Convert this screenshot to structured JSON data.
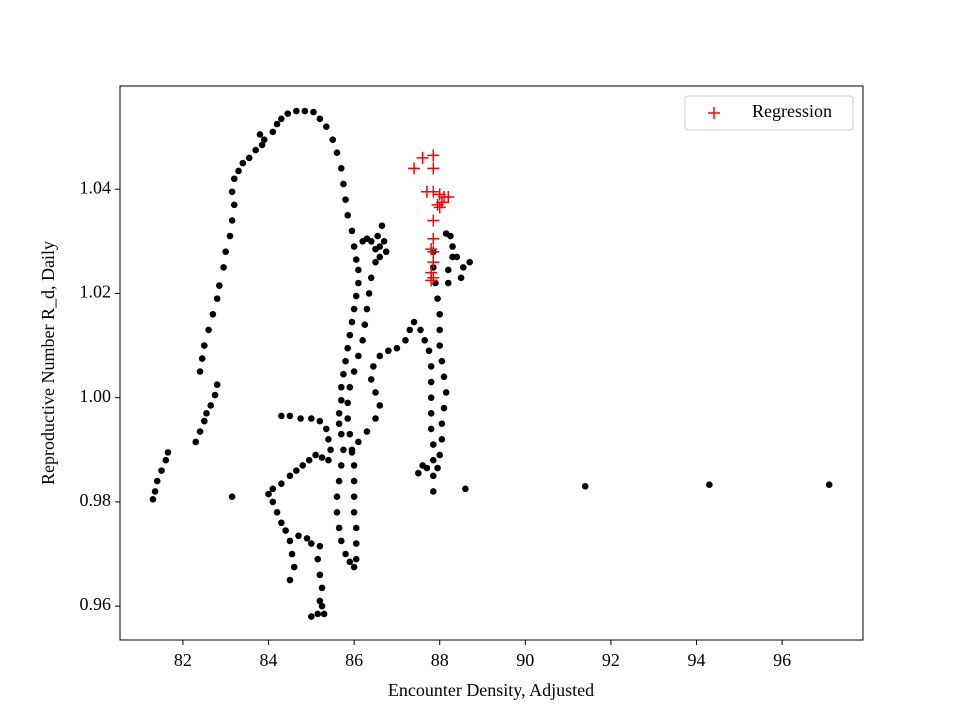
{
  "chart_data": {
    "type": "scatter",
    "xlabel": "Encounter Density, Adjusted",
    "ylabel": "Reproductive Number R_d, Daily",
    "xlim": [
      80.53,
      97.89
    ],
    "ylim": [
      0.9535,
      1.0598
    ],
    "xticks": [
      82,
      84,
      86,
      88,
      90,
      92,
      94,
      96
    ],
    "yticks": [
      0.96,
      0.98,
      {
        "value": 1,
        "label": "1.00"
      },
      1.02,
      1.04
    ],
    "grid": false,
    "legend": "upper right",
    "series": [
      {
        "color": "#000000",
        "marker": "o",
        "x": [
          81.3,
          81.35,
          81.4,
          81.5,
          81.6,
          81.65,
          82.3,
          82.4,
          82.5,
          82.55,
          82.65,
          82.75,
          82.8,
          82.4,
          82.45,
          82.5,
          82.6,
          82.7,
          82.8,
          82.85,
          82.95,
          83.0,
          83.1,
          83.15,
          83.2,
          83.15,
          83.2,
          83.3,
          83.4,
          83.55,
          83.7,
          83.85,
          83.8,
          83.9,
          84.1,
          84.2,
          84.3,
          84.45,
          84.65,
          84.85,
          85.05,
          85.2,
          85.35,
          85.5,
          85.6,
          85.7,
          85.75,
          85.8,
          85.85,
          85.95,
          86.0,
          86.05,
          86.1,
          86.1,
          86.05,
          86.0,
          85.95,
          85.9,
          85.85,
          85.8,
          85.75,
          85.7,
          85.7,
          85.65,
          85.65,
          85.7,
          85.75,
          85.7,
          85.65,
          85.6,
          85.6,
          85.65,
          85.7,
          85.8,
          85.9,
          86.0,
          86.05,
          86.05,
          86.05,
          86.0,
          86.0,
          86.0,
          86.0,
          85.95,
          85.9,
          85.85,
          85.85,
          85.9,
          86.0,
          86.1,
          86.2,
          86.25,
          86.3,
          86.35,
          86.4,
          86.5,
          86.6,
          86.55,
          86.65,
          86.7,
          86.75,
          86.6,
          86.5,
          86.4,
          86.3,
          86.2,
          84.0,
          84.1,
          84.3,
          84.5,
          84.65,
          84.8,
          84.95,
          85.1,
          85.25,
          85.4,
          84.3,
          84.5,
          84.75,
          85.0,
          85.2,
          85.35,
          85.4,
          85.45,
          83.15,
          84.1,
          84.2,
          84.3,
          84.4,
          84.5,
          84.55,
          84.6,
          84.5,
          84.7,
          84.9,
          85.0,
          85.2,
          85.15,
          85.2,
          85.25,
          85.2,
          85.15,
          85.0,
          85.3,
          85.25,
          85.95,
          86.1,
          86.3,
          86.5,
          86.6,
          86.5,
          86.4,
          86.45,
          86.6,
          86.8,
          87.0,
          87.2,
          87.3,
          87.4,
          87.55,
          87.65,
          87.75,
          87.8,
          87.8,
          87.8,
          87.8,
          87.8,
          87.85,
          87.85,
          87.85,
          87.85,
          87.5,
          87.6,
          87.7,
          87.95,
          88.0,
          88.05,
          88.05,
          88.1,
          88.15,
          88.1,
          88.05,
          88.0,
          88.0,
          88.0,
          87.95,
          87.9,
          87.85,
          87.85,
          88.25,
          88.3,
          88.3,
          88.2,
          88.2,
          88.5,
          88.55,
          88.7,
          88.4,
          88.15,
          88.6,
          91.4,
          94.3,
          97.1
        ],
        "values": [
          0.9805,
          0.982,
          0.984,
          0.986,
          0.988,
          0.9895,
          0.9915,
          0.9935,
          0.9955,
          0.997,
          0.9985,
          1.0005,
          1.0025,
          1.005,
          1.0075,
          1.01,
          1.013,
          1.016,
          1.019,
          1.0215,
          1.025,
          1.028,
          1.031,
          1.034,
          1.037,
          1.0395,
          1.042,
          1.0435,
          1.045,
          1.046,
          1.0475,
          1.0485,
          1.0505,
          1.0495,
          1.051,
          1.0525,
          1.0535,
          1.0545,
          1.055,
          1.055,
          1.0548,
          1.0535,
          1.052,
          1.0495,
          1.047,
          1.044,
          1.041,
          1.038,
          1.035,
          1.032,
          1.029,
          1.0265,
          1.0245,
          1.022,
          1.0195,
          1.017,
          1.0145,
          1.012,
          1.0095,
          1.007,
          1.0045,
          1.002,
          0.9995,
          0.997,
          0.995,
          0.993,
          0.99,
          0.987,
          0.984,
          0.981,
          0.978,
          0.975,
          0.9725,
          0.97,
          0.9685,
          0.9675,
          0.969,
          0.972,
          0.975,
          0.978,
          0.981,
          0.984,
          0.987,
          0.99,
          0.993,
          0.996,
          0.999,
          1.002,
          1.005,
          1.008,
          1.011,
          1.014,
          1.017,
          1.02,
          1.023,
          1.026,
          1.029,
          1.031,
          1.033,
          1.03,
          1.028,
          1.027,
          1.0285,
          1.03,
          1.0305,
          1.03,
          0.9815,
          0.9825,
          0.9835,
          0.985,
          0.986,
          0.987,
          0.988,
          0.989,
          0.9885,
          0.988,
          0.9965,
          0.9965,
          0.996,
          0.996,
          0.9955,
          0.994,
          0.992,
          0.99,
          0.981,
          0.98,
          0.978,
          0.976,
          0.9745,
          0.9725,
          0.97,
          0.9675,
          0.965,
          0.9735,
          0.973,
          0.972,
          0.9715,
          0.969,
          0.966,
          0.9635,
          0.961,
          0.9585,
          0.958,
          0.9585,
          0.96,
          0.9895,
          0.9915,
          0.9935,
          0.996,
          0.9985,
          1.001,
          1.0035,
          1.006,
          1.008,
          1.009,
          1.0095,
          1.011,
          1.013,
          1.0145,
          1.013,
          1.011,
          1.009,
          1.006,
          1.003,
          1.0,
          0.997,
          0.994,
          0.991,
          0.988,
          0.985,
          0.982,
          0.9855,
          0.987,
          0.9865,
          0.9865,
          0.989,
          0.992,
          0.995,
          0.998,
          1.001,
          1.004,
          1.007,
          1.01,
          1.013,
          1.016,
          1.019,
          1.022,
          1.025,
          1.028,
          1.031,
          1.029,
          1.027,
          1.0245,
          1.022,
          1.023,
          1.025,
          1.026,
          1.027,
          1.0315,
          0.9825,
          0.983,
          0.9833,
          0.9833
        ]
      },
      {
        "name": "Regression",
        "color": "#ff0000",
        "marker": "+",
        "x": [
          87.4,
          87.6,
          87.85,
          87.85,
          87.7,
          87.85,
          88.0,
          88.1,
          88.2,
          88.05,
          88.0,
          87.95,
          87.85,
          87.85,
          87.85,
          87.85,
          87.8,
          87.8,
          87.85,
          87.8
        ],
        "values": [
          1.044,
          1.046,
          1.0465,
          1.044,
          1.0395,
          1.0395,
          1.039,
          1.0385,
          1.0385,
          1.0375,
          1.0365,
          1.037,
          1.034,
          1.0305,
          1.028,
          1.026,
          1.024,
          1.0225,
          1.023,
          1.0285
        ]
      }
    ]
  }
}
